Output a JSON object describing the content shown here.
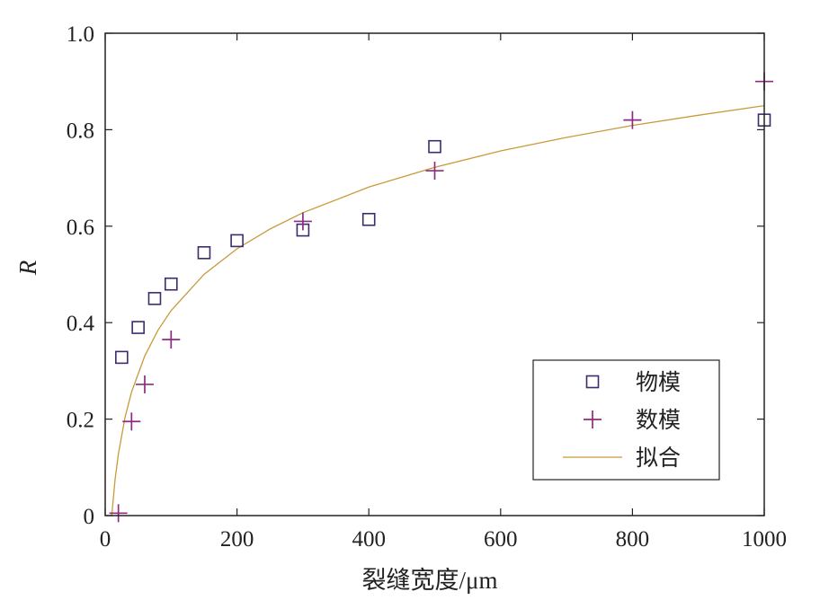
{
  "chart_data": {
    "type": "scatter",
    "xlabel": "裂缝宽度/μm",
    "ylabel": "R",
    "xlim": [
      0,
      1000
    ],
    "ylim": [
      0,
      1.0
    ],
    "x_ticks": [
      "0",
      "200",
      "400",
      "600",
      "800",
      "1000"
    ],
    "y_ticks": [
      "0",
      "0.2",
      "0.4",
      "0.6",
      "0.8",
      "1.0"
    ],
    "x_tick_values": [
      0,
      200,
      400,
      600,
      800,
      1000
    ],
    "y_tick_values": [
      0,
      0.2,
      0.4,
      0.6,
      0.8,
      1.0
    ],
    "grid": false,
    "legend_position": "bottom-right",
    "series": [
      {
        "name": "物模",
        "marker": "square",
        "color": "#3d2b6e",
        "x": [
          25,
          50,
          75,
          100,
          150,
          200,
          300,
          400,
          500,
          1000
        ],
        "y": [
          0.328,
          0.39,
          0.45,
          0.48,
          0.545,
          0.57,
          0.592,
          0.614,
          0.765,
          0.82
        ]
      },
      {
        "name": "数模",
        "marker": "plus",
        "color": "#8e2b80",
        "x": [
          20,
          40,
          60,
          100,
          300,
          500,
          800,
          1000
        ],
        "y": [
          0.005,
          0.195,
          0.272,
          0.365,
          0.61,
          0.715,
          0.82,
          0.9
        ]
      },
      {
        "name": "拟合",
        "marker": "line",
        "color": "#c89a3a",
        "x": [
          10,
          15,
          20,
          30,
          40,
          60,
          80,
          100,
          150,
          200,
          250,
          300,
          400,
          500,
          600,
          700,
          800,
          900,
          1000
        ],
        "y": [
          0.0,
          0.075,
          0.128,
          0.203,
          0.256,
          0.331,
          0.384,
          0.425,
          0.5,
          0.553,
          0.594,
          0.628,
          0.681,
          0.722,
          0.756,
          0.784,
          0.809,
          0.83,
          0.85
        ]
      }
    ]
  }
}
